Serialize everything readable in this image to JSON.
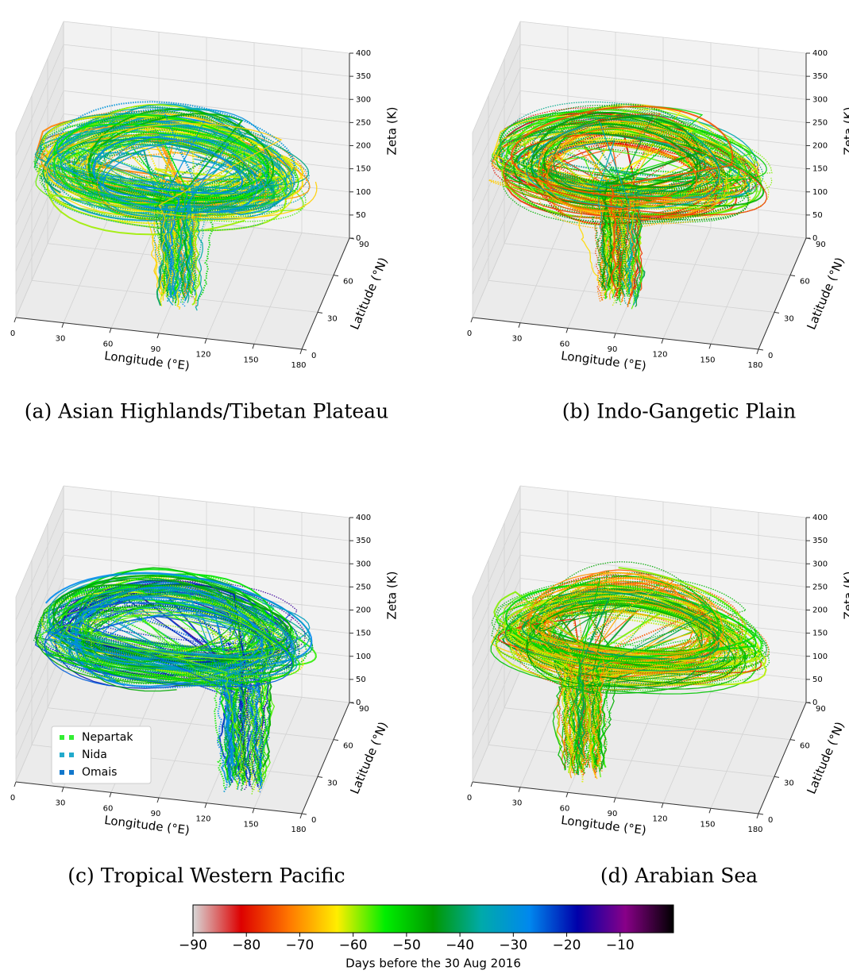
{
  "chart_data": [
    {
      "type": "trajectory3d",
      "caption": "(a) Asian Highlands/Tibetan Plateau",
      "xlabel": "Longitude (°E)",
      "ylabel": "Latitude (°N)",
      "zlabel": "Zeta (K)",
      "xlim": [
        0,
        180
      ],
      "ylim": [
        0,
        90
      ],
      "zlim": [
        0,
        400
      ],
      "xticks": [
        0,
        30,
        60,
        90,
        120,
        150,
        180
      ],
      "yticks": [
        0,
        30,
        60,
        90
      ],
      "zticks": [
        0,
        50,
        100,
        150,
        200,
        250,
        300,
        350,
        400
      ],
      "grid": true
    },
    {
      "type": "trajectory3d",
      "caption": "(b) Indo-Gangetic Plain",
      "xlabel": "Longitude (°E)",
      "ylabel": "Latitude (°N)",
      "zlabel": "Zeta (K)",
      "xlim": [
        0,
        180
      ],
      "ylim": [
        0,
        90
      ],
      "zlim": [
        0,
        400
      ],
      "xticks": [
        0,
        30,
        60,
        90,
        120,
        150,
        180
      ],
      "yticks": [
        0,
        30,
        60,
        90
      ],
      "zticks": [
        0,
        50,
        100,
        150,
        200,
        250,
        300,
        350,
        400
      ],
      "grid": true
    },
    {
      "type": "trajectory3d",
      "caption": "(c) Tropical Western Pacific",
      "xlabel": "Longitude (°E)",
      "ylabel": "Latitude (°N)",
      "zlabel": "Zeta (K)",
      "xlim": [
        0,
        180
      ],
      "ylim": [
        0,
        90
      ],
      "zlim": [
        0,
        400
      ],
      "xticks": [
        0,
        30,
        60,
        90,
        120,
        150,
        180
      ],
      "yticks": [
        0,
        30,
        60,
        90
      ],
      "zticks": [
        0,
        50,
        100,
        150,
        200,
        250,
        300,
        350,
        400
      ],
      "grid": true,
      "legend": {
        "position": "lower left",
        "entries": [
          {
            "name": "Nepartak",
            "color": "#33ee33"
          },
          {
            "name": "Nida",
            "color": "#22aacc"
          },
          {
            "name": "Omais",
            "color": "#1177cc"
          }
        ]
      }
    },
    {
      "type": "trajectory3d",
      "caption": "(d) Arabian Sea",
      "xlabel": "Longitude (°E)",
      "ylabel": "Latitude (°N)",
      "zlabel": "Zeta (K)",
      "xlim": [
        0,
        180
      ],
      "ylim": [
        0,
        90
      ],
      "zlim": [
        0,
        400
      ],
      "xticks": [
        0,
        30,
        60,
        90,
        120,
        150,
        180
      ],
      "yticks": [
        0,
        30,
        60,
        90
      ],
      "zticks": [
        0,
        50,
        100,
        150,
        200,
        250,
        300,
        350,
        400
      ],
      "grid": true
    }
  ],
  "colorbar": {
    "label": "Days before the 30 Aug 2016",
    "lim": [
      -90,
      0
    ],
    "ticks": [
      {
        "value": -90,
        "label": "−90"
      },
      {
        "value": -80,
        "label": "−80"
      },
      {
        "value": -70,
        "label": "−70"
      },
      {
        "value": -60,
        "label": "−60"
      },
      {
        "value": -50,
        "label": "−50"
      },
      {
        "value": -40,
        "label": "−40"
      },
      {
        "value": -30,
        "label": "−30"
      },
      {
        "value": -20,
        "label": "−20"
      },
      {
        "value": -10,
        "label": "−10"
      }
    ],
    "colors": [
      "#d8d8d8",
      "#dd0000",
      "#ff7700",
      "#ffee00",
      "#00ee00",
      "#009900",
      "#00aaaa",
      "#0088ee",
      "#0000aa",
      "#880088",
      "#000000"
    ]
  }
}
